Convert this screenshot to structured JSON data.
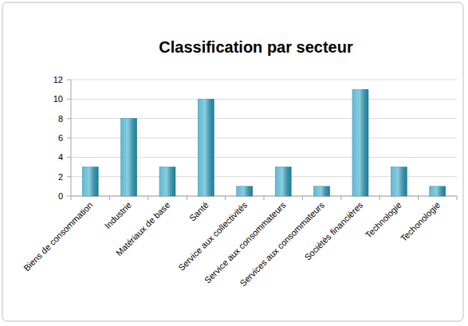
{
  "chart_data": {
    "type": "bar",
    "title": "Classification par secteur",
    "categories": [
      "Biens de consommation",
      "Industrie",
      "Matériaux de base",
      "Santé",
      "Service aux collectivités",
      "Service aux consommateurs",
      "Services aux consommateurs",
      "Sociétés financières",
      "Technologie",
      "Techonologie"
    ],
    "values": [
      3,
      8,
      3,
      10,
      1,
      3,
      1,
      11,
      3,
      1
    ],
    "color": "#2aa3c4",
    "ylim": [
      0,
      12
    ],
    "yticks": [
      0,
      2,
      4,
      6,
      8,
      10,
      12
    ],
    "grid": true
  }
}
